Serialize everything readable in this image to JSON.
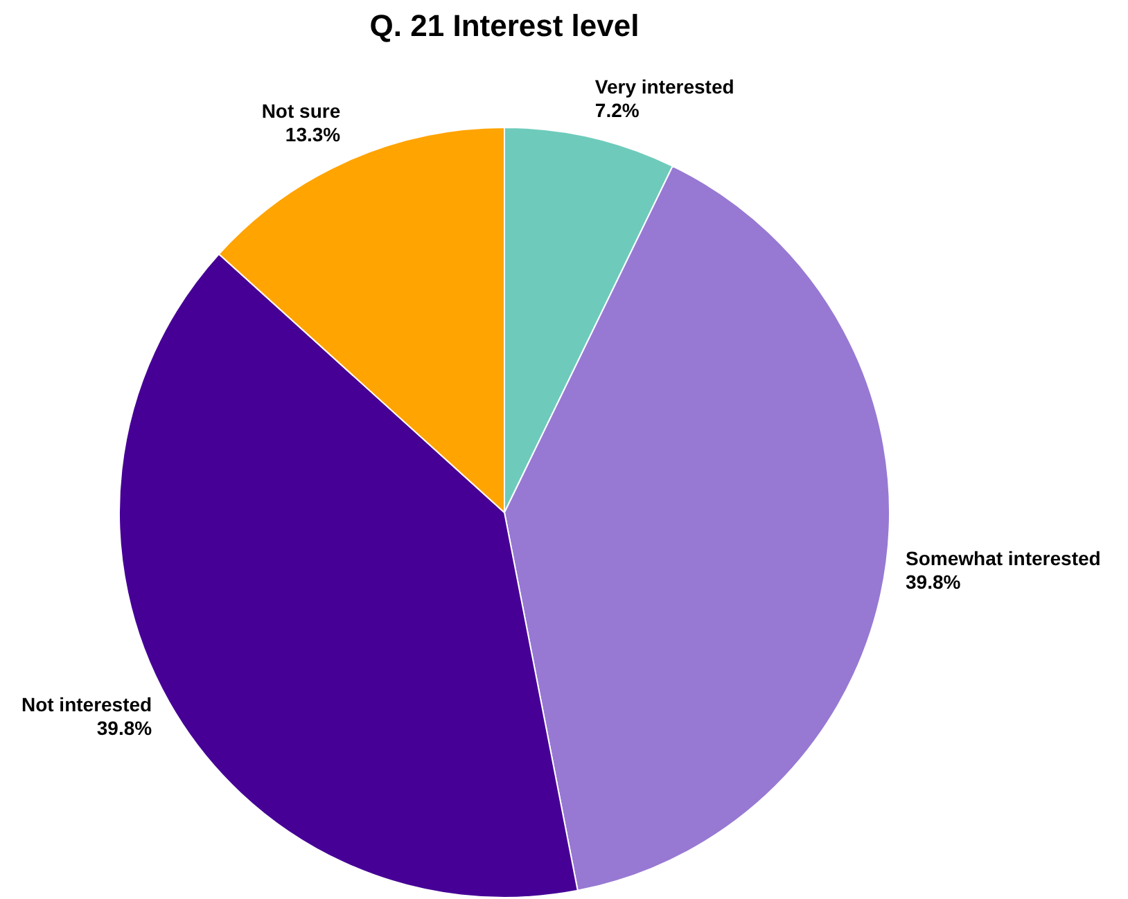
{
  "chart_data": {
    "type": "pie",
    "title": "Q. 21 Interest level",
    "categories": [
      "Very interested",
      "Somewhat interested",
      "Not interested",
      "Not sure"
    ],
    "values": [
      7.2,
      39.8,
      39.8,
      13.3
    ],
    "colors": [
      "#6ecbbb",
      "#9779d3",
      "#460096",
      "#ffa400"
    ],
    "value_labels": [
      "7.2%",
      "39.8%",
      "39.8%",
      "13.3%"
    ]
  }
}
